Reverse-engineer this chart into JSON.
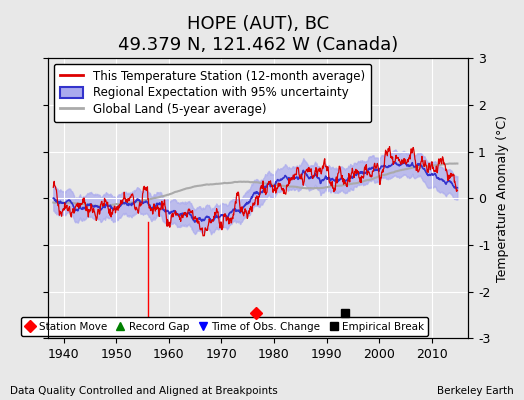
{
  "title": "HOPE (AUT), BC",
  "subtitle": "49.379 N, 121.462 W (Canada)",
  "ylabel": "Temperature Anomaly (°C)",
  "footer_left": "Data Quality Controlled and Aligned at Breakpoints",
  "footer_right": "Berkeley Earth",
  "xlim": [
    1937,
    2017
  ],
  "ylim": [
    -3,
    3
  ],
  "yticks": [
    -3,
    -2,
    -1,
    0,
    1,
    2,
    3
  ],
  "xticks": [
    1940,
    1950,
    1960,
    1970,
    1980,
    1990,
    2000,
    2010
  ],
  "station_move_years": [
    1976.5
  ],
  "station_move_values": [
    -2.45
  ],
  "empirical_break_years": [
    1993.5
  ],
  "empirical_break_values": [
    -2.45
  ],
  "bg_color": "#e8e8e8",
  "grid_color": "#ffffff",
  "line_color_station": "#dd0000",
  "line_color_regional": "#3333cc",
  "line_color_global": "#aaaaaa",
  "uncertainty_color": "#aaaaee",
  "title_fontsize": 13,
  "subtitle_fontsize": 10,
  "axis_fontsize": 9,
  "tick_fontsize": 9,
  "legend_fontsize": 8.5
}
